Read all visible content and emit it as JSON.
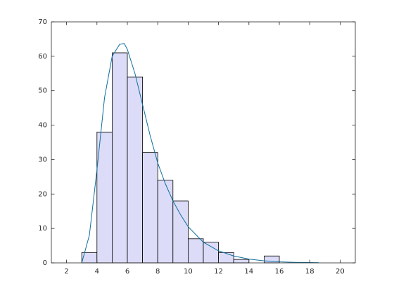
{
  "chart_data": {
    "type": "histogram",
    "bins": [
      3,
      4,
      5,
      6,
      7,
      8,
      9,
      10,
      11,
      12,
      13,
      14,
      15,
      16
    ],
    "values": [
      3,
      38,
      61,
      54,
      32,
      24,
      18,
      7,
      6,
      3,
      1,
      0,
      2
    ],
    "color": "#dcdcf8",
    "edgecolor": "#000000",
    "fit": {
      "type": "line",
      "color": "#0f6f9e",
      "x": [
        3,
        3.5,
        4,
        4.5,
        5,
        5.5,
        5.8,
        6,
        6.5,
        7,
        7.5,
        8,
        8.5,
        9,
        9.5,
        10,
        11,
        12,
        13,
        14,
        15,
        16,
        17,
        18.6
      ],
      "values": [
        0,
        8,
        27,
        48,
        60,
        63.5,
        63.7,
        62,
        55,
        46,
        37,
        29,
        23,
        18,
        14,
        10.5,
        6,
        3.5,
        2,
        1.1,
        0.6,
        0.3,
        0.15,
        0.05
      ]
    },
    "xlim": [
      1,
      21
    ],
    "ylim": [
      0,
      70
    ],
    "xticks": [
      2,
      4,
      6,
      8,
      10,
      12,
      14,
      16,
      18,
      20
    ],
    "yticks": [
      0,
      10,
      20,
      30,
      40,
      50,
      60,
      70
    ],
    "grid": false
  }
}
